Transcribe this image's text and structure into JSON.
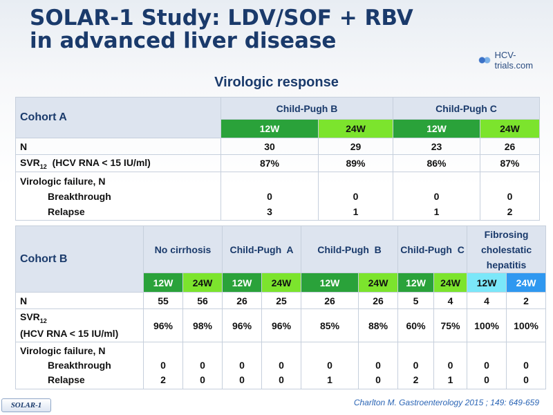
{
  "title_line1": "SOLAR-1 Study: LDV/SOF + RBV",
  "title_line2": "in advanced liver disease",
  "logo_text": "HCV-trials.com",
  "subtitle": "Virologic response",
  "cohortA": {
    "label": "Cohort A",
    "groups": [
      "Child-Pugh B",
      "Child-Pugh C"
    ],
    "durations": [
      "12W",
      "24W",
      "12W",
      "24W"
    ],
    "n_label": "N",
    "n": [
      "30",
      "29",
      "23",
      "26"
    ],
    "svr_label_main": "SVR",
    "svr_label_sub": "12",
    "svr_label_rest": "  (HCV RNA < 15 IU/ml)",
    "svr": [
      "87%",
      "89%",
      "86%",
      "87%"
    ],
    "vf_label": "Virologic failure, N",
    "breakthrough_label": "Breakthrough",
    "relapse_label": "Relapse",
    "breakthrough": [
      "0",
      "0",
      "0",
      "0"
    ],
    "relapse": [
      "3",
      "1",
      "1",
      "2"
    ]
  },
  "cohortB": {
    "label": "Cohort B",
    "groups": [
      "No cirrhosis",
      "Child-Pugh  A",
      "Child-Pugh  B",
      "Child-Pugh  C",
      "Fibrosing cholestatic hepatitis"
    ],
    "durations": [
      "12W",
      "24W",
      "12W",
      "24W",
      "12W",
      "24W",
      "12W",
      "24W",
      "12W",
      "24W"
    ],
    "n_label": "N",
    "n": [
      "55",
      "56",
      "26",
      "25",
      "26",
      "26",
      "5",
      "4",
      "4",
      "2"
    ],
    "svr_label_main": "SVR",
    "svr_label_sub": "12",
    "svr_label_line2": "(HCV RNA < 15 IU/ml)",
    "svr": [
      "96%",
      "98%",
      "96%",
      "96%",
      "85%",
      "88%",
      "60%",
      "75%",
      "100%",
      "100%"
    ],
    "vf_label": "Virologic failure, N",
    "breakthrough_label": "Breakthrough",
    "relapse_label": "Relapse",
    "breakthrough": [
      "0",
      "0",
      "0",
      "0",
      "0",
      "0",
      "0",
      "0",
      "0",
      "0"
    ],
    "relapse": [
      "2",
      "0",
      "0",
      "0",
      "1",
      "0",
      "2",
      "1",
      "0",
      "0"
    ]
  },
  "footer_tag": "SOLAR-1",
  "reference": "Charlton M. Gastroenterology 2015 ; 149: 649-659",
  "colors": {
    "title": "#1a3a6b",
    "green_dark": "#2aa23a",
    "green_light": "#7ce42d",
    "cyan": "#7be7f9",
    "blue": "#2f98f0",
    "header_bg": "#dde4ef"
  }
}
